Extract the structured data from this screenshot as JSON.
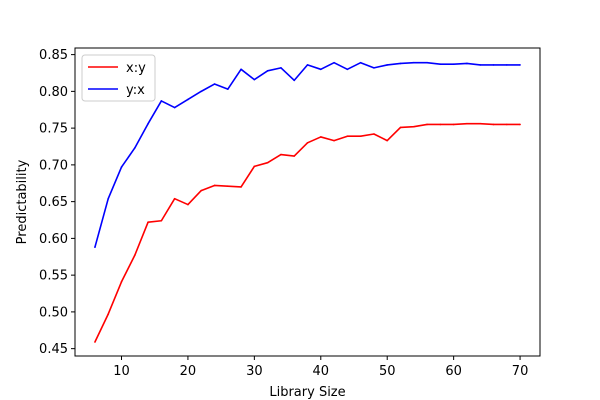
{
  "chart_data": {
    "type": "line",
    "title": "",
    "xlabel": "Library Size",
    "ylabel": "Predictability",
    "xlim": [
      3,
      73
    ],
    "ylim": [
      0.44,
      0.859
    ],
    "xticks": [
      10,
      20,
      30,
      40,
      50,
      60,
      70
    ],
    "yticks": [
      0.45,
      0.5,
      0.55,
      0.6,
      0.65,
      0.7,
      0.75,
      0.8,
      0.85
    ],
    "ytick_labels": [
      "0.45",
      "0.50",
      "0.55",
      "0.60",
      "0.65",
      "0.70",
      "0.75",
      "0.80",
      "0.85"
    ],
    "legend_position": "upper-left",
    "grid": false,
    "x": [
      6,
      8,
      10,
      12,
      14,
      16,
      18,
      20,
      22,
      24,
      26,
      28,
      30,
      32,
      34,
      36,
      38,
      40,
      42,
      44,
      46,
      48,
      50,
      52,
      54,
      56,
      58,
      60,
      62,
      64,
      66,
      68,
      70
    ],
    "series": [
      {
        "name": "x:y",
        "color": "#ff0000",
        "values": [
          0.459,
          0.497,
          0.541,
          0.577,
          0.622,
          0.624,
          0.654,
          0.646,
          0.665,
          0.672,
          0.671,
          0.67,
          0.698,
          0.703,
          0.714,
          0.712,
          0.73,
          0.738,
          0.733,
          0.739,
          0.739,
          0.742,
          0.733,
          0.751,
          0.752,
          0.755,
          0.755,
          0.755,
          0.756,
          0.756,
          0.755,
          0.755,
          0.755
        ]
      },
      {
        "name": "y:x",
        "color": "#0000ff",
        "values": [
          0.588,
          0.654,
          0.697,
          0.723,
          0.756,
          0.787,
          0.778,
          0.789,
          0.8,
          0.81,
          0.803,
          0.83,
          0.816,
          0.828,
          0.832,
          0.815,
          0.836,
          0.83,
          0.839,
          0.83,
          0.839,
          0.832,
          0.836,
          0.838,
          0.839,
          0.839,
          0.837,
          0.837,
          0.838,
          0.836,
          0.836,
          0.836,
          0.836
        ]
      }
    ]
  }
}
